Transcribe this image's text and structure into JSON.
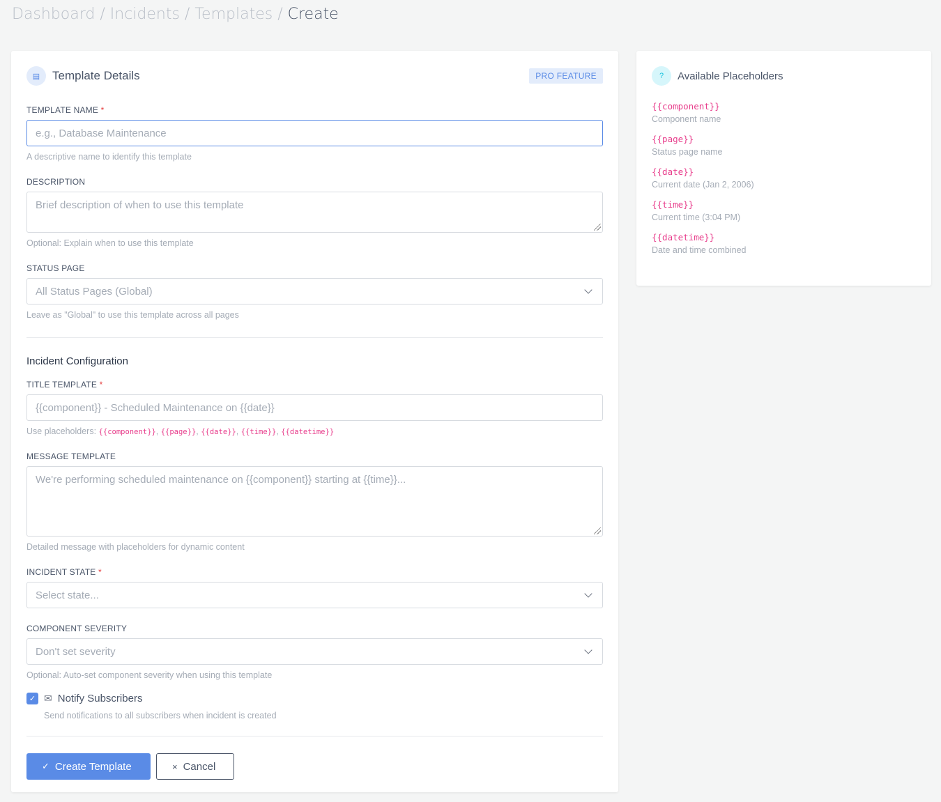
{
  "breadcrumb": [
    "Dashboard",
    "Incidents",
    "Templates",
    "Create"
  ],
  "main": {
    "title": "Template Details",
    "badge": "PRO FEATURE",
    "template_name": {
      "label": "TEMPLATE NAME",
      "placeholder": "e.g., Database Maintenance",
      "help": "A descriptive name to identify this template"
    },
    "description": {
      "label": "DESCRIPTION",
      "placeholder": "Brief description of when to use this template",
      "help": "Optional: Explain when to use this template"
    },
    "status_page": {
      "label": "STATUS PAGE",
      "value": "All Status Pages (Global)",
      "help": "Leave as \"Global\" to use this template across all pages"
    },
    "section": "Incident Configuration",
    "title_template": {
      "label": "TITLE TEMPLATE",
      "placeholder": "{{component}} - Scheduled Maintenance on {{date}}",
      "help_prefix": "Use placeholders:",
      "codes": [
        "{{component}}",
        "{{page}}",
        "{{date}}",
        "{{time}}",
        "{{datetime}}"
      ]
    },
    "message_template": {
      "label": "MESSAGE TEMPLATE",
      "placeholder": "We're performing scheduled maintenance on {{component}} starting at {{time}}...",
      "help": "Detailed message with placeholders for dynamic content"
    },
    "incident_state": {
      "label": "INCIDENT STATE",
      "value": "Select state..."
    },
    "severity": {
      "label": "COMPONENT SEVERITY",
      "value": "Don't set severity",
      "help": "Optional: Auto-set component severity when using this template"
    },
    "notify": {
      "label": "Notify Subscribers",
      "help": "Send notifications to all subscribers when incident is created",
      "checked": true
    },
    "create": "Create Template",
    "cancel": "Cancel"
  },
  "side": {
    "title": "Available Placeholders",
    "items": [
      {
        "code": "{{component}}",
        "desc": "Component name"
      },
      {
        "code": "{{page}}",
        "desc": "Status page name"
      },
      {
        "code": "{{date}}",
        "desc": "Current date (Jan 2, 2006)"
      },
      {
        "code": "{{time}}",
        "desc": "Current time (3:04 PM)"
      },
      {
        "code": "{{datetime}}",
        "desc": "Date and time combined"
      }
    ]
  },
  "colors": {
    "accent": "#5a8be6",
    "code": "#e83e8c"
  }
}
